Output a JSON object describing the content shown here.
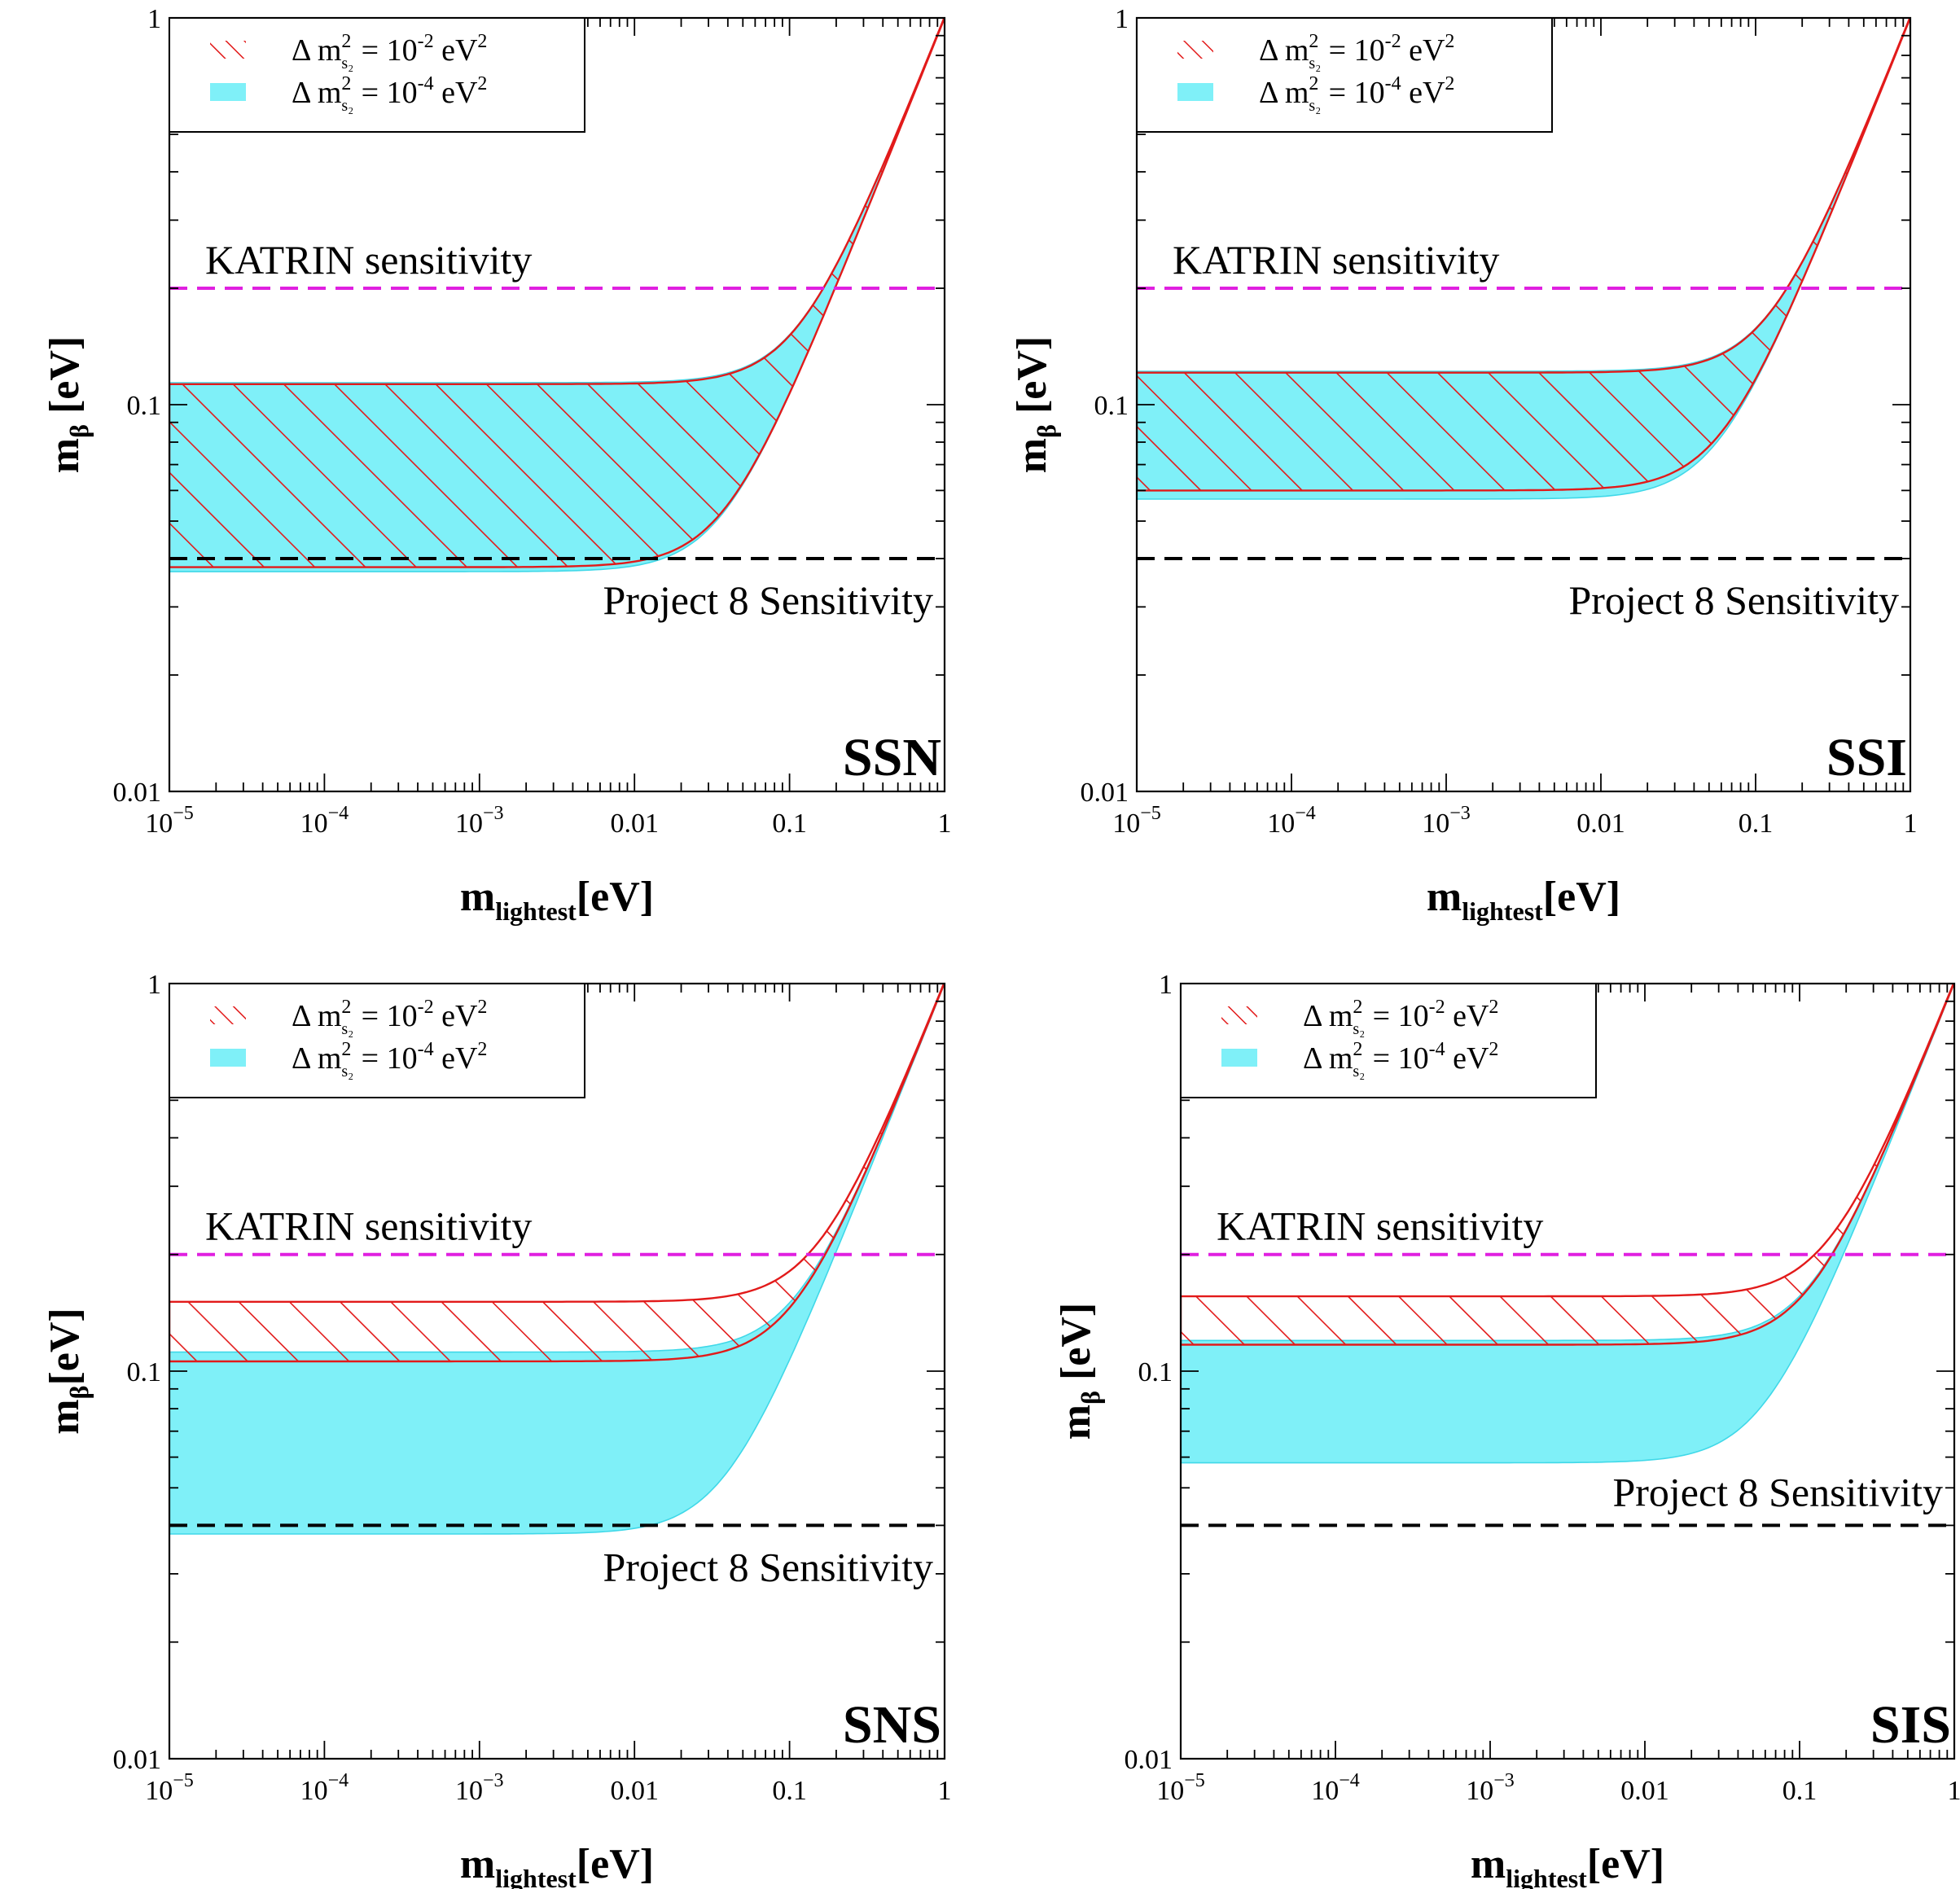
{
  "chart_data": [
    {
      "type": "area",
      "tag": "SSN",
      "xscale": "log",
      "yscale": "log",
      "xlim": [
        1e-05,
        1
      ],
      "ylim": [
        0.01,
        1
      ],
      "xlabel": {
        "main": "m",
        "sub": "lightest",
        "unit": "[eV]"
      },
      "ylabel": {
        "main": "m",
        "sub": "β",
        "unit": " [eV]"
      },
      "x_ticks": [
        {
          "value": 1e-05,
          "base": "10",
          "exp": "−5"
        },
        {
          "value": 0.0001,
          "base": "10",
          "exp": "−4"
        },
        {
          "value": 0.001,
          "base": "10",
          "exp": "−3"
        },
        {
          "value": 0.01,
          "text": "0.01"
        },
        {
          "value": 0.1,
          "text": "0.1"
        },
        {
          "value": 1,
          "text": "1"
        }
      ],
      "y_ticks": [
        {
          "value": 0.01,
          "text": "0.01"
        },
        {
          "value": 0.1,
          "text": "0.1"
        },
        {
          "value": 1,
          "text": "1"
        }
      ],
      "legend": {
        "placement": "top-left",
        "entries": [
          {
            "pre": "Δ m",
            "sub": "s₂",
            "sup": "2",
            "mid": " = 10",
            "sup2": "-2",
            "post": " eV",
            "sup3": "2",
            "style": "red-hatch"
          },
          {
            "pre": "Δ m",
            "sub": "s₂",
            "sup": "2",
            "mid": " = 10",
            "sup2": "-4",
            "post": " eV",
            "sup3": "2",
            "style": "cyan-fill"
          }
        ]
      },
      "series": [
        {
          "style": "cyan-fill",
          "lower_plateau": 0.037,
          "upper_plateau": 0.114
        },
        {
          "style": "red-hatch",
          "lower_plateau": 0.038,
          "upper_plateau": 0.113
        }
      ],
      "reference_lines": [
        {
          "label": "KATRIN sensitivity",
          "value": 0.2,
          "color": "#e020e0",
          "label_pos": "above-left"
        },
        {
          "label": "Project 8 Sensitivity",
          "value": 0.04,
          "color": "#000000",
          "label_pos": "below-right"
        }
      ],
      "grid": false
    },
    {
      "type": "area",
      "tag": "SSI",
      "xscale": "log",
      "yscale": "log",
      "xlim": [
        1e-05,
        1
      ],
      "ylim": [
        0.01,
        1
      ],
      "xlabel": {
        "main": "m",
        "sub": "lightest",
        "unit": "[eV]"
      },
      "ylabel": {
        "main": "m",
        "sub": "β",
        "unit": " [eV]"
      },
      "x_ticks": [
        {
          "value": 1e-05,
          "base": "10",
          "exp": "−5"
        },
        {
          "value": 0.0001,
          "base": "10",
          "exp": "−4"
        },
        {
          "value": 0.001,
          "base": "10",
          "exp": "−3"
        },
        {
          "value": 0.01,
          "text": "0.01"
        },
        {
          "value": 0.1,
          "text": "0.1"
        },
        {
          "value": 1,
          "text": "1"
        }
      ],
      "y_ticks": [
        {
          "value": 0.01,
          "text": "0.01"
        },
        {
          "value": 0.1,
          "text": "0.1"
        },
        {
          "value": 1,
          "text": "1"
        }
      ],
      "legend": {
        "placement": "top-left",
        "entries": [
          {
            "pre": "Δ m",
            "sub": "s₂",
            "sup": "2",
            "mid": " = 10",
            "sup2": "-2",
            "post": " eV",
            "sup3": "2",
            "style": "red-hatch"
          },
          {
            "pre": "Δ m",
            "sub": "s₂",
            "sup": "2",
            "mid": " = 10",
            "sup2": "-4",
            "post": " eV",
            "sup3": "2",
            "style": "cyan-fill"
          }
        ]
      },
      "series": [
        {
          "style": "cyan-fill",
          "lower_plateau": 0.057,
          "upper_plateau": 0.122
        },
        {
          "style": "red-hatch",
          "lower_plateau": 0.06,
          "upper_plateau": 0.121
        }
      ],
      "reference_lines": [
        {
          "label": "KATRIN sensitivity",
          "value": 0.2,
          "color": "#e020e0",
          "label_pos": "above-left"
        },
        {
          "label": "Project 8 Sensitivity",
          "value": 0.04,
          "color": "#000000",
          "label_pos": "below-right"
        }
      ],
      "grid": false
    },
    {
      "type": "area",
      "tag": "SNS",
      "xscale": "log",
      "yscale": "log",
      "xlim": [
        1e-05,
        1
      ],
      "ylim": [
        0.01,
        1
      ],
      "xlabel": {
        "main": "m",
        "sub": "lightest",
        "unit": "[eV]"
      },
      "ylabel": {
        "main": "m",
        "sub": "β",
        "unit": "[eV]"
      },
      "x_ticks": [
        {
          "value": 1e-05,
          "base": "10",
          "exp": "−5"
        },
        {
          "value": 0.0001,
          "base": "10",
          "exp": "−4"
        },
        {
          "value": 0.001,
          "base": "10",
          "exp": "−3"
        },
        {
          "value": 0.01,
          "text": "0.01"
        },
        {
          "value": 0.1,
          "text": "0.1"
        },
        {
          "value": 1,
          "text": "1"
        }
      ],
      "y_ticks": [
        {
          "value": 0.01,
          "text": "0.01"
        },
        {
          "value": 0.1,
          "text": "0.1"
        },
        {
          "value": 1,
          "text": "1"
        }
      ],
      "legend": {
        "placement": "top-left",
        "entries": [
          {
            "pre": "Δ m",
            "sub": "s₂",
            "sup": "2",
            "mid": " = 10",
            "sup2": "-2",
            "post": " eV",
            "sup3": "2",
            "style": "red-hatch"
          },
          {
            "pre": "Δ m",
            "sub": "s₂",
            "sup": "2",
            "mid": " = 10",
            "sup2": "-4",
            "post": " eV",
            "sup3": "2",
            "style": "cyan-fill"
          }
        ]
      },
      "series": [
        {
          "style": "cyan-fill",
          "lower_plateau": 0.038,
          "upper_plateau": 0.112
        },
        {
          "style": "red-hatch",
          "lower_plateau": 0.106,
          "upper_plateau": 0.151
        }
      ],
      "reference_lines": [
        {
          "label": "KATRIN sensitivity",
          "value": 0.2,
          "color": "#e020e0",
          "label_pos": "above-left"
        },
        {
          "label": "Project 8 Sensitivity",
          "value": 0.04,
          "color": "#000000",
          "label_pos": "below-right"
        }
      ],
      "grid": false
    },
    {
      "type": "area",
      "tag": "SIS",
      "xscale": "log",
      "yscale": "log",
      "xlim": [
        1e-05,
        1
      ],
      "ylim": [
        0.01,
        1
      ],
      "xlabel": {
        "main": "m",
        "sub": "lightest",
        "unit": "[eV]"
      },
      "ylabel": {
        "main": "m",
        "sub": "β",
        "unit": " [eV]"
      },
      "x_ticks": [
        {
          "value": 1e-05,
          "base": "10",
          "exp": "−5"
        },
        {
          "value": 0.0001,
          "base": "10",
          "exp": "−4"
        },
        {
          "value": 0.001,
          "base": "10",
          "exp": "−3"
        },
        {
          "value": 0.01,
          "text": "0.01"
        },
        {
          "value": 0.1,
          "text": "0.1"
        },
        {
          "value": 1,
          "text": "1"
        }
      ],
      "y_ticks": [
        {
          "value": 0.01,
          "text": "0.01"
        },
        {
          "value": 0.1,
          "text": "0.1"
        },
        {
          "value": 1,
          "text": "1"
        }
      ],
      "legend": {
        "placement": "top-left",
        "entries": [
          {
            "pre": "Δ m",
            "sub": "s₂",
            "sup": "2",
            "mid": " = 10",
            "sup2": "-2",
            "post": " eV",
            "sup3": "2",
            "style": "red-hatch"
          },
          {
            "pre": "Δ m",
            "sub": "s₂",
            "sup": "2",
            "mid": " = 10",
            "sup2": "-4",
            "post": " eV",
            "sup3": "2",
            "style": "cyan-fill"
          }
        ]
      },
      "series": [
        {
          "style": "cyan-fill",
          "lower_plateau": 0.058,
          "upper_plateau": 0.12
        },
        {
          "style": "red-hatch",
          "lower_plateau": 0.117,
          "upper_plateau": 0.156
        }
      ],
      "reference_lines": [
        {
          "label": "KATRIN sensitivity",
          "value": 0.2,
          "color": "#e020e0",
          "label_pos": "above-left"
        },
        {
          "label": "Project 8 Sensitivity",
          "value": 0.04,
          "color": "#000000",
          "label_pos": "above-right"
        }
      ],
      "grid": false
    }
  ],
  "colors": {
    "cyan_fill": "#7ff0f8",
    "cyan_edge": "#40d8e8",
    "red_hatch": "#e21a1a",
    "katrin": "#e020e0",
    "project8": "#000000",
    "axis": "#000000"
  }
}
